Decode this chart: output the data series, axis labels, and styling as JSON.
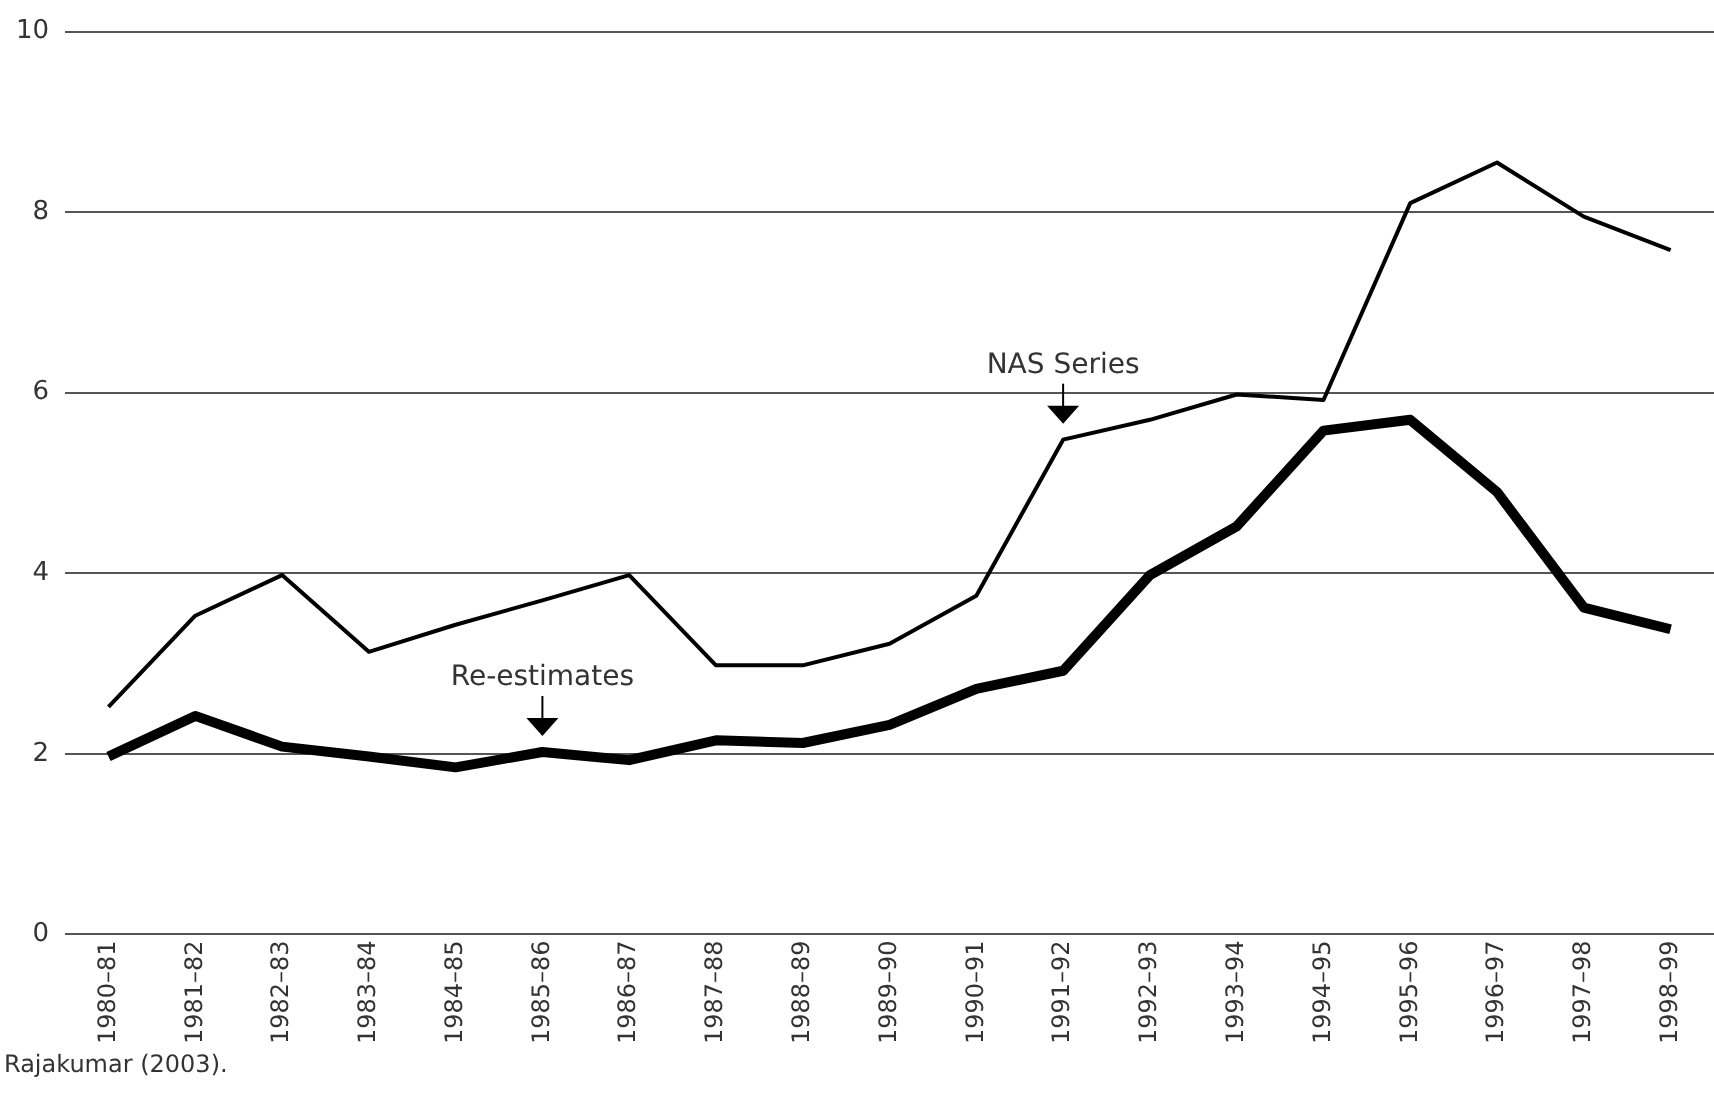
{
  "chart_data": {
    "type": "line",
    "categories": [
      "1980–81",
      "1981–82",
      "1982–83",
      "1983–84",
      "1984–85",
      "1985–86",
      "1986–87",
      "1987–88",
      "1988–89",
      "1989–90",
      "1990–91",
      "1991–92",
      "1992–93",
      "1993–94",
      "1994–95",
      "1995–96",
      "1996–97",
      "1997–98",
      "1998–99"
    ],
    "series": [
      {
        "color": "#000000",
        "values": [
          2.52,
          3.53,
          3.98,
          3.13,
          3.43,
          3.7,
          3.98,
          2.98,
          2.98,
          3.22,
          3.75,
          5.48,
          5.7,
          5.98,
          5.92,
          8.1,
          8.55,
          7.95,
          7.58
        ]
      },
      {
        "color": "#000000",
        "values": [
          1.97,
          2.42,
          2.08,
          1.97,
          1.85,
          2.02,
          1.93,
          2.15,
          2.12,
          2.32,
          2.72,
          2.92,
          3.98,
          4.52,
          5.58,
          5.7,
          4.9,
          3.62,
          3.38
        ]
      }
    ],
    "ylim": [
      0,
      10
    ],
    "yticks": [
      0,
      2,
      4,
      6,
      8,
      10
    ],
    "grid": "y",
    "legend": false,
    "marker": "none",
    "line_style": "solid",
    "annotations": [
      {
        "text": "NAS Series",
        "x": "1991–92",
        "y": 5.48
      },
      {
        "text": "Re-estimates",
        "x": "1985–86",
        "y": 2.02
      },
      "Rajakumar (2003)."
    ]
  }
}
